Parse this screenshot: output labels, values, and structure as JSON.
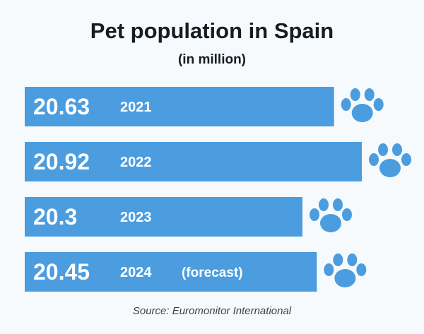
{
  "title": "Pet population in Spain",
  "subtitle": "(in million)",
  "source": "Source: Euromonitor International",
  "colors": {
    "bar": "#4b9ddf",
    "paw": "#4b9ddf",
    "text_on_bar": "#ffffff",
    "title": "#151c22"
  },
  "paw_icon": "paw-icon",
  "chart_data": {
    "type": "bar",
    "orientation": "horizontal",
    "title": "Pet population in Spain",
    "subtitle": "(in million)",
    "categories": [
      "2021",
      "2022",
      "2023",
      "2024"
    ],
    "category_notes": [
      "",
      "",
      "",
      "(forecast)"
    ],
    "values": [
      20.63,
      20.92,
      20.3,
      20.45
    ],
    "value_labels": [
      "20.63",
      "20.92",
      "20.3",
      "20.45"
    ],
    "xlabel": "",
    "ylabel": "",
    "legend": false,
    "grid": false
  }
}
